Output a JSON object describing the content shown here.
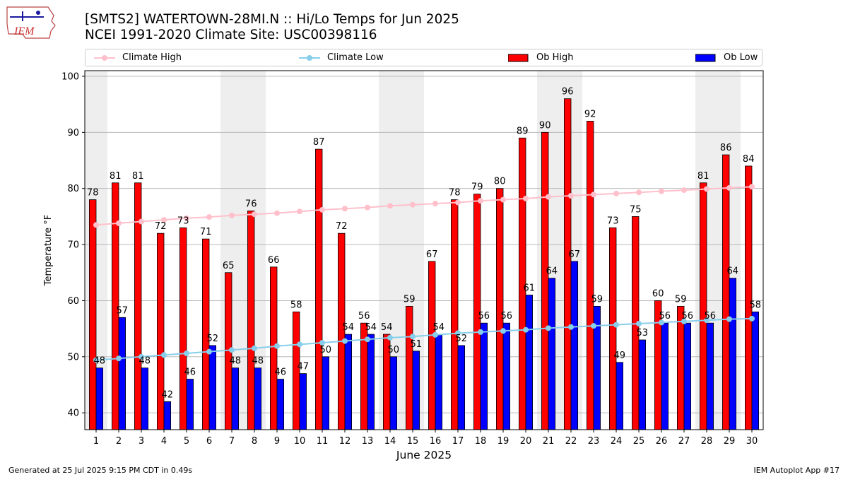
{
  "header": {
    "logo_text": "IEM",
    "title": "[SMTS2] WATERTOWN-28MI.N :: Hi/Lo Temps for Jun 2025",
    "subtitle": "NCEI 1991-2020 Climate Site: USC00398116"
  },
  "footer": {
    "generated": "Generated at 25 Jul 2025 9:15 PM CDT in 0.49s",
    "app": "IEM Autoplot App #17"
  },
  "colors": {
    "ob_high": "#ff0000",
    "ob_low": "#0000ff",
    "climate_high": "#ffc0cb",
    "climate_low": "#87ceeb",
    "weekend_shade": "#eeeeee",
    "grid": "#b0b0b0"
  },
  "chart_data": {
    "type": "bar",
    "xlabel": "June 2025",
    "ylabel": "Temperature °F",
    "ylim": [
      37,
      101
    ],
    "yticks": [
      40,
      50,
      60,
      70,
      80,
      90,
      100
    ],
    "grid": "horizontal",
    "legend_placement": "top",
    "categories": [
      1,
      2,
      3,
      4,
      5,
      6,
      7,
      8,
      9,
      10,
      11,
      12,
      13,
      14,
      15,
      16,
      17,
      18,
      19,
      20,
      21,
      22,
      23,
      24,
      25,
      26,
      27,
      28,
      29,
      30
    ],
    "shaded_days": [
      1,
      7,
      8,
      14,
      15,
      21,
      22,
      28,
      29
    ],
    "series": [
      {
        "name": "Ob High",
        "kind": "bar",
        "values": [
          78,
          81,
          81,
          72,
          73,
          71,
          65,
          76,
          66,
          58,
          87,
          72,
          56,
          54,
          59,
          67,
          78,
          79,
          80,
          89,
          90,
          96,
          92,
          73,
          75,
          60,
          59,
          81,
          86,
          84
        ]
      },
      {
        "name": "Ob Low",
        "kind": "bar",
        "values": [
          48,
          57,
          48,
          42,
          46,
          52,
          48,
          48,
          46,
          47,
          50,
          54,
          54,
          50,
          51,
          54,
          52,
          56,
          56,
          61,
          64,
          67,
          59,
          49,
          53,
          56,
          56,
          56,
          64,
          58
        ]
      },
      {
        "name": "Climate High",
        "kind": "line",
        "values": [
          73.5,
          73.8,
          74.1,
          74.4,
          74.7,
          74.9,
          75.2,
          75.4,
          75.6,
          75.9,
          76.2,
          76.4,
          76.6,
          76.9,
          77.1,
          77.3,
          77.5,
          77.8,
          78.0,
          78.2,
          78.5,
          78.7,
          78.9,
          79.1,
          79.3,
          79.5,
          79.7,
          79.9,
          80.1,
          80.3
        ]
      },
      {
        "name": "Climate Low",
        "kind": "line",
        "values": [
          49.4,
          49.7,
          50.0,
          50.3,
          50.6,
          50.9,
          51.2,
          51.5,
          51.9,
          52.2,
          52.5,
          52.8,
          53.1,
          53.4,
          53.6,
          53.9,
          54.2,
          54.4,
          54.6,
          54.8,
          55.1,
          55.3,
          55.5,
          55.7,
          55.9,
          56.1,
          56.3,
          56.5,
          56.7,
          56.8
        ]
      }
    ]
  }
}
